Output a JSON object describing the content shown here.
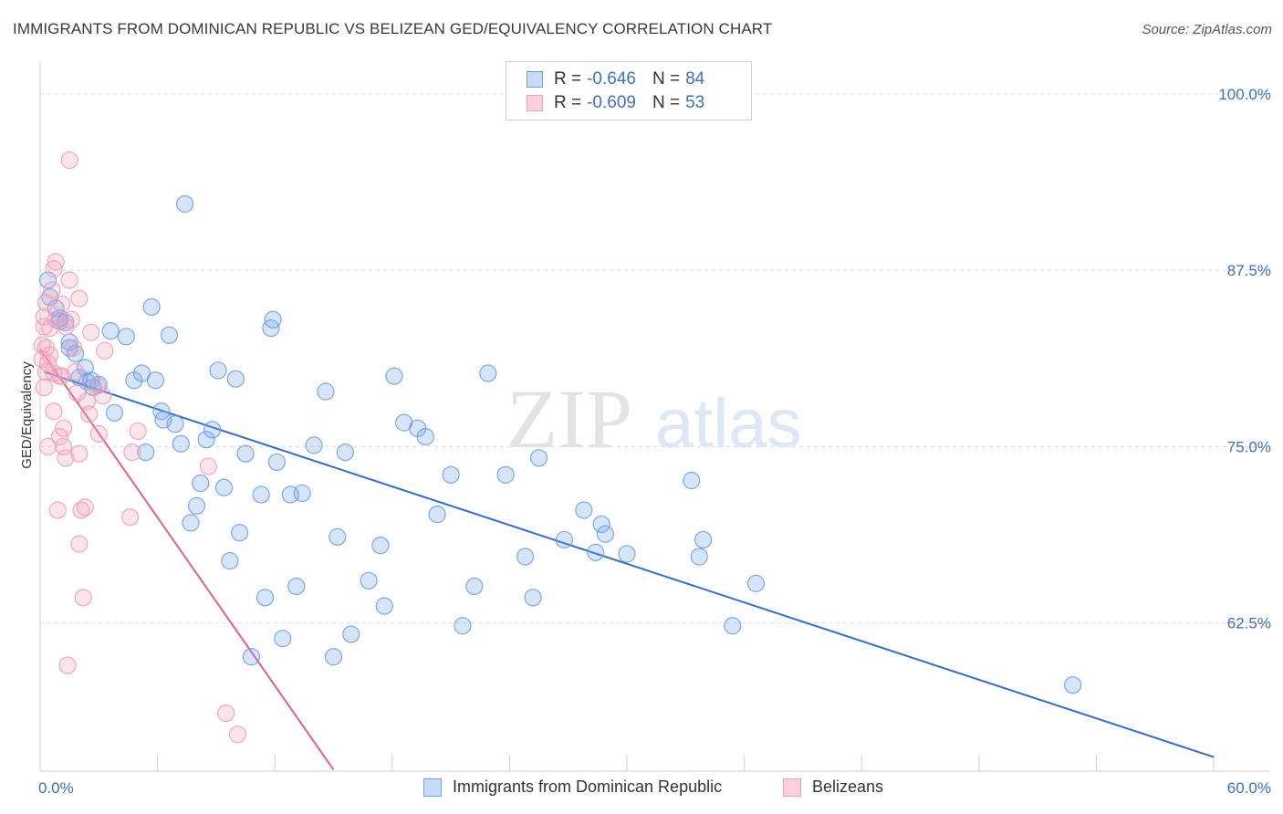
{
  "title": "IMMIGRANTS FROM DOMINICAN REPUBLIC VS BELIZEAN GED/EQUIVALENCY CORRELATION CHART",
  "source": "Source: ZipAtlas.com",
  "watermark": {
    "zip": "ZIP",
    "atlas": "atlas"
  },
  "legend": {
    "rows": [
      {
        "r_label": "R =",
        "r_value": "-0.646",
        "n_label": "N =",
        "n_value": "84"
      },
      {
        "r_label": "R =",
        "r_value": "-0.609",
        "n_label": "N =",
        "n_value": "53"
      }
    ]
  },
  "chart_data": {
    "type": "scatter",
    "xlabel": "",
    "ylabel": "GED/Equivalency",
    "xlim": [
      0,
      60
    ],
    "ylim": [
      52,
      102
    ],
    "x_tick_labels": [
      "0.0%",
      "60.0%"
    ],
    "y_ticks": [
      62.5,
      75.0,
      87.5,
      100.0
    ],
    "y_tick_labels": [
      "62.5%",
      "75.0%",
      "87.5%",
      "100.0%"
    ],
    "grid": true,
    "legend_position": "bottom",
    "series": [
      {
        "name": "Immigrants from Dominican Republic",
        "color": "#6fa0e6",
        "line_color": "#2f6fcf",
        "trend": {
          "x0": 0.2,
          "y0": 80.3,
          "x1": 60.0,
          "y1": 53.0
        },
        "points": [
          [
            0.4,
            86.8
          ],
          [
            0.5,
            85.6
          ],
          [
            0.8,
            84.8
          ],
          [
            1.0,
            84.1
          ],
          [
            1.0,
            83.9
          ],
          [
            1.3,
            83.8
          ],
          [
            1.5,
            82.4
          ],
          [
            1.8,
            81.6
          ],
          [
            2.0,
            79.9
          ],
          [
            2.3,
            80.6
          ],
          [
            2.4,
            79.6
          ],
          [
            2.6,
            79.7
          ],
          [
            2.7,
            79.2
          ],
          [
            3.0,
            79.4
          ],
          [
            3.6,
            83.2
          ],
          [
            3.8,
            77.4
          ],
          [
            4.4,
            82.8
          ],
          [
            4.8,
            79.7
          ],
          [
            5.2,
            80.2
          ],
          [
            5.4,
            74.6
          ],
          [
            5.7,
            84.9
          ],
          [
            5.9,
            79.7
          ],
          [
            6.2,
            77.5
          ],
          [
            6.3,
            76.9
          ],
          [
            6.6,
            82.9
          ],
          [
            6.9,
            76.6
          ],
          [
            7.2,
            75.2
          ],
          [
            7.4,
            92.2
          ],
          [
            7.7,
            69.6
          ],
          [
            8.0,
            70.8
          ],
          [
            8.2,
            72.4
          ],
          [
            8.5,
            75.5
          ],
          [
            8.8,
            76.2
          ],
          [
            9.1,
            80.4
          ],
          [
            9.4,
            72.1
          ],
          [
            9.7,
            66.9
          ],
          [
            10.0,
            79.8
          ],
          [
            10.2,
            68.9
          ],
          [
            10.5,
            74.5
          ],
          [
            10.8,
            60.1
          ],
          [
            11.3,
            71.6
          ],
          [
            11.5,
            64.3
          ],
          [
            11.8,
            83.4
          ],
          [
            11.9,
            84.0
          ],
          [
            12.1,
            73.9
          ],
          [
            12.4,
            61.4
          ],
          [
            12.8,
            71.6
          ],
          [
            13.1,
            65.1
          ],
          [
            13.4,
            71.7
          ],
          [
            14.0,
            75.1
          ],
          [
            14.6,
            78.9
          ],
          [
            15.0,
            60.1
          ],
          [
            15.2,
            68.6
          ],
          [
            15.6,
            74.6
          ],
          [
            15.9,
            61.7
          ],
          [
            16.8,
            65.5
          ],
          [
            17.4,
            68.0
          ],
          [
            17.6,
            63.7
          ],
          [
            18.1,
            80.0
          ],
          [
            18.6,
            76.7
          ],
          [
            19.3,
            76.3
          ],
          [
            19.7,
            75.7
          ],
          [
            20.3,
            70.2
          ],
          [
            21.0,
            73.0
          ],
          [
            21.6,
            62.3
          ],
          [
            22.2,
            65.1
          ],
          [
            22.9,
            80.2
          ],
          [
            23.8,
            73.0
          ],
          [
            24.8,
            67.2
          ],
          [
            25.2,
            64.3
          ],
          [
            25.5,
            74.2
          ],
          [
            26.8,
            68.4
          ],
          [
            27.8,
            70.5
          ],
          [
            28.4,
            67.5
          ],
          [
            28.7,
            69.5
          ],
          [
            28.9,
            68.8
          ],
          [
            30.0,
            67.4
          ],
          [
            33.3,
            72.6
          ],
          [
            33.7,
            67.2
          ],
          [
            33.9,
            68.4
          ],
          [
            35.4,
            62.3
          ],
          [
            36.6,
            65.3
          ],
          [
            52.8,
            58.1
          ],
          [
            1.5,
            82.0
          ]
        ]
      },
      {
        "name": "Belizeans",
        "color": "#f0a0b8",
        "line_color": "#e0608e",
        "trend": {
          "x0": 0.0,
          "y0": 81.9,
          "x1": 15.0,
          "y1": 52.1
        },
        "points": [
          [
            0.1,
            82.2
          ],
          [
            0.1,
            81.2
          ],
          [
            0.2,
            79.2
          ],
          [
            0.2,
            84.2
          ],
          [
            0.2,
            83.5
          ],
          [
            0.3,
            80.3
          ],
          [
            0.3,
            85.2
          ],
          [
            0.3,
            82.0
          ],
          [
            0.4,
            75.0
          ],
          [
            0.4,
            80.9
          ],
          [
            0.5,
            83.4
          ],
          [
            0.6,
            86.1
          ],
          [
            0.7,
            77.5
          ],
          [
            0.7,
            87.6
          ],
          [
            0.7,
            80.2
          ],
          [
            0.8,
            88.1
          ],
          [
            0.8,
            84.0
          ],
          [
            0.9,
            70.5
          ],
          [
            1.0,
            75.7
          ],
          [
            1.1,
            85.1
          ],
          [
            1.1,
            80.0
          ],
          [
            1.2,
            76.3
          ],
          [
            1.2,
            75.0
          ],
          [
            1.3,
            74.2
          ],
          [
            1.3,
            83.5
          ],
          [
            1.4,
            59.5
          ],
          [
            1.5,
            95.3
          ],
          [
            1.5,
            86.8
          ],
          [
            1.6,
            84.0
          ],
          [
            1.7,
            82.0
          ],
          [
            1.8,
            80.3
          ],
          [
            1.9,
            78.8
          ],
          [
            2.0,
            74.5
          ],
          [
            2.0,
            68.1
          ],
          [
            2.0,
            85.5
          ],
          [
            2.1,
            70.5
          ],
          [
            2.2,
            64.3
          ],
          [
            2.3,
            70.7
          ],
          [
            2.4,
            78.2
          ],
          [
            2.5,
            77.3
          ],
          [
            2.6,
            83.1
          ],
          [
            2.9,
            79.3
          ],
          [
            3.0,
            75.9
          ],
          [
            3.2,
            78.6
          ],
          [
            3.3,
            81.8
          ],
          [
            4.6,
            70.0
          ],
          [
            4.7,
            74.6
          ],
          [
            5.0,
            76.1
          ],
          [
            8.6,
            73.6
          ],
          [
            9.5,
            56.1
          ],
          [
            10.1,
            54.6
          ],
          [
            0.5,
            81.5
          ],
          [
            1.0,
            80.0
          ]
        ]
      }
    ]
  }
}
